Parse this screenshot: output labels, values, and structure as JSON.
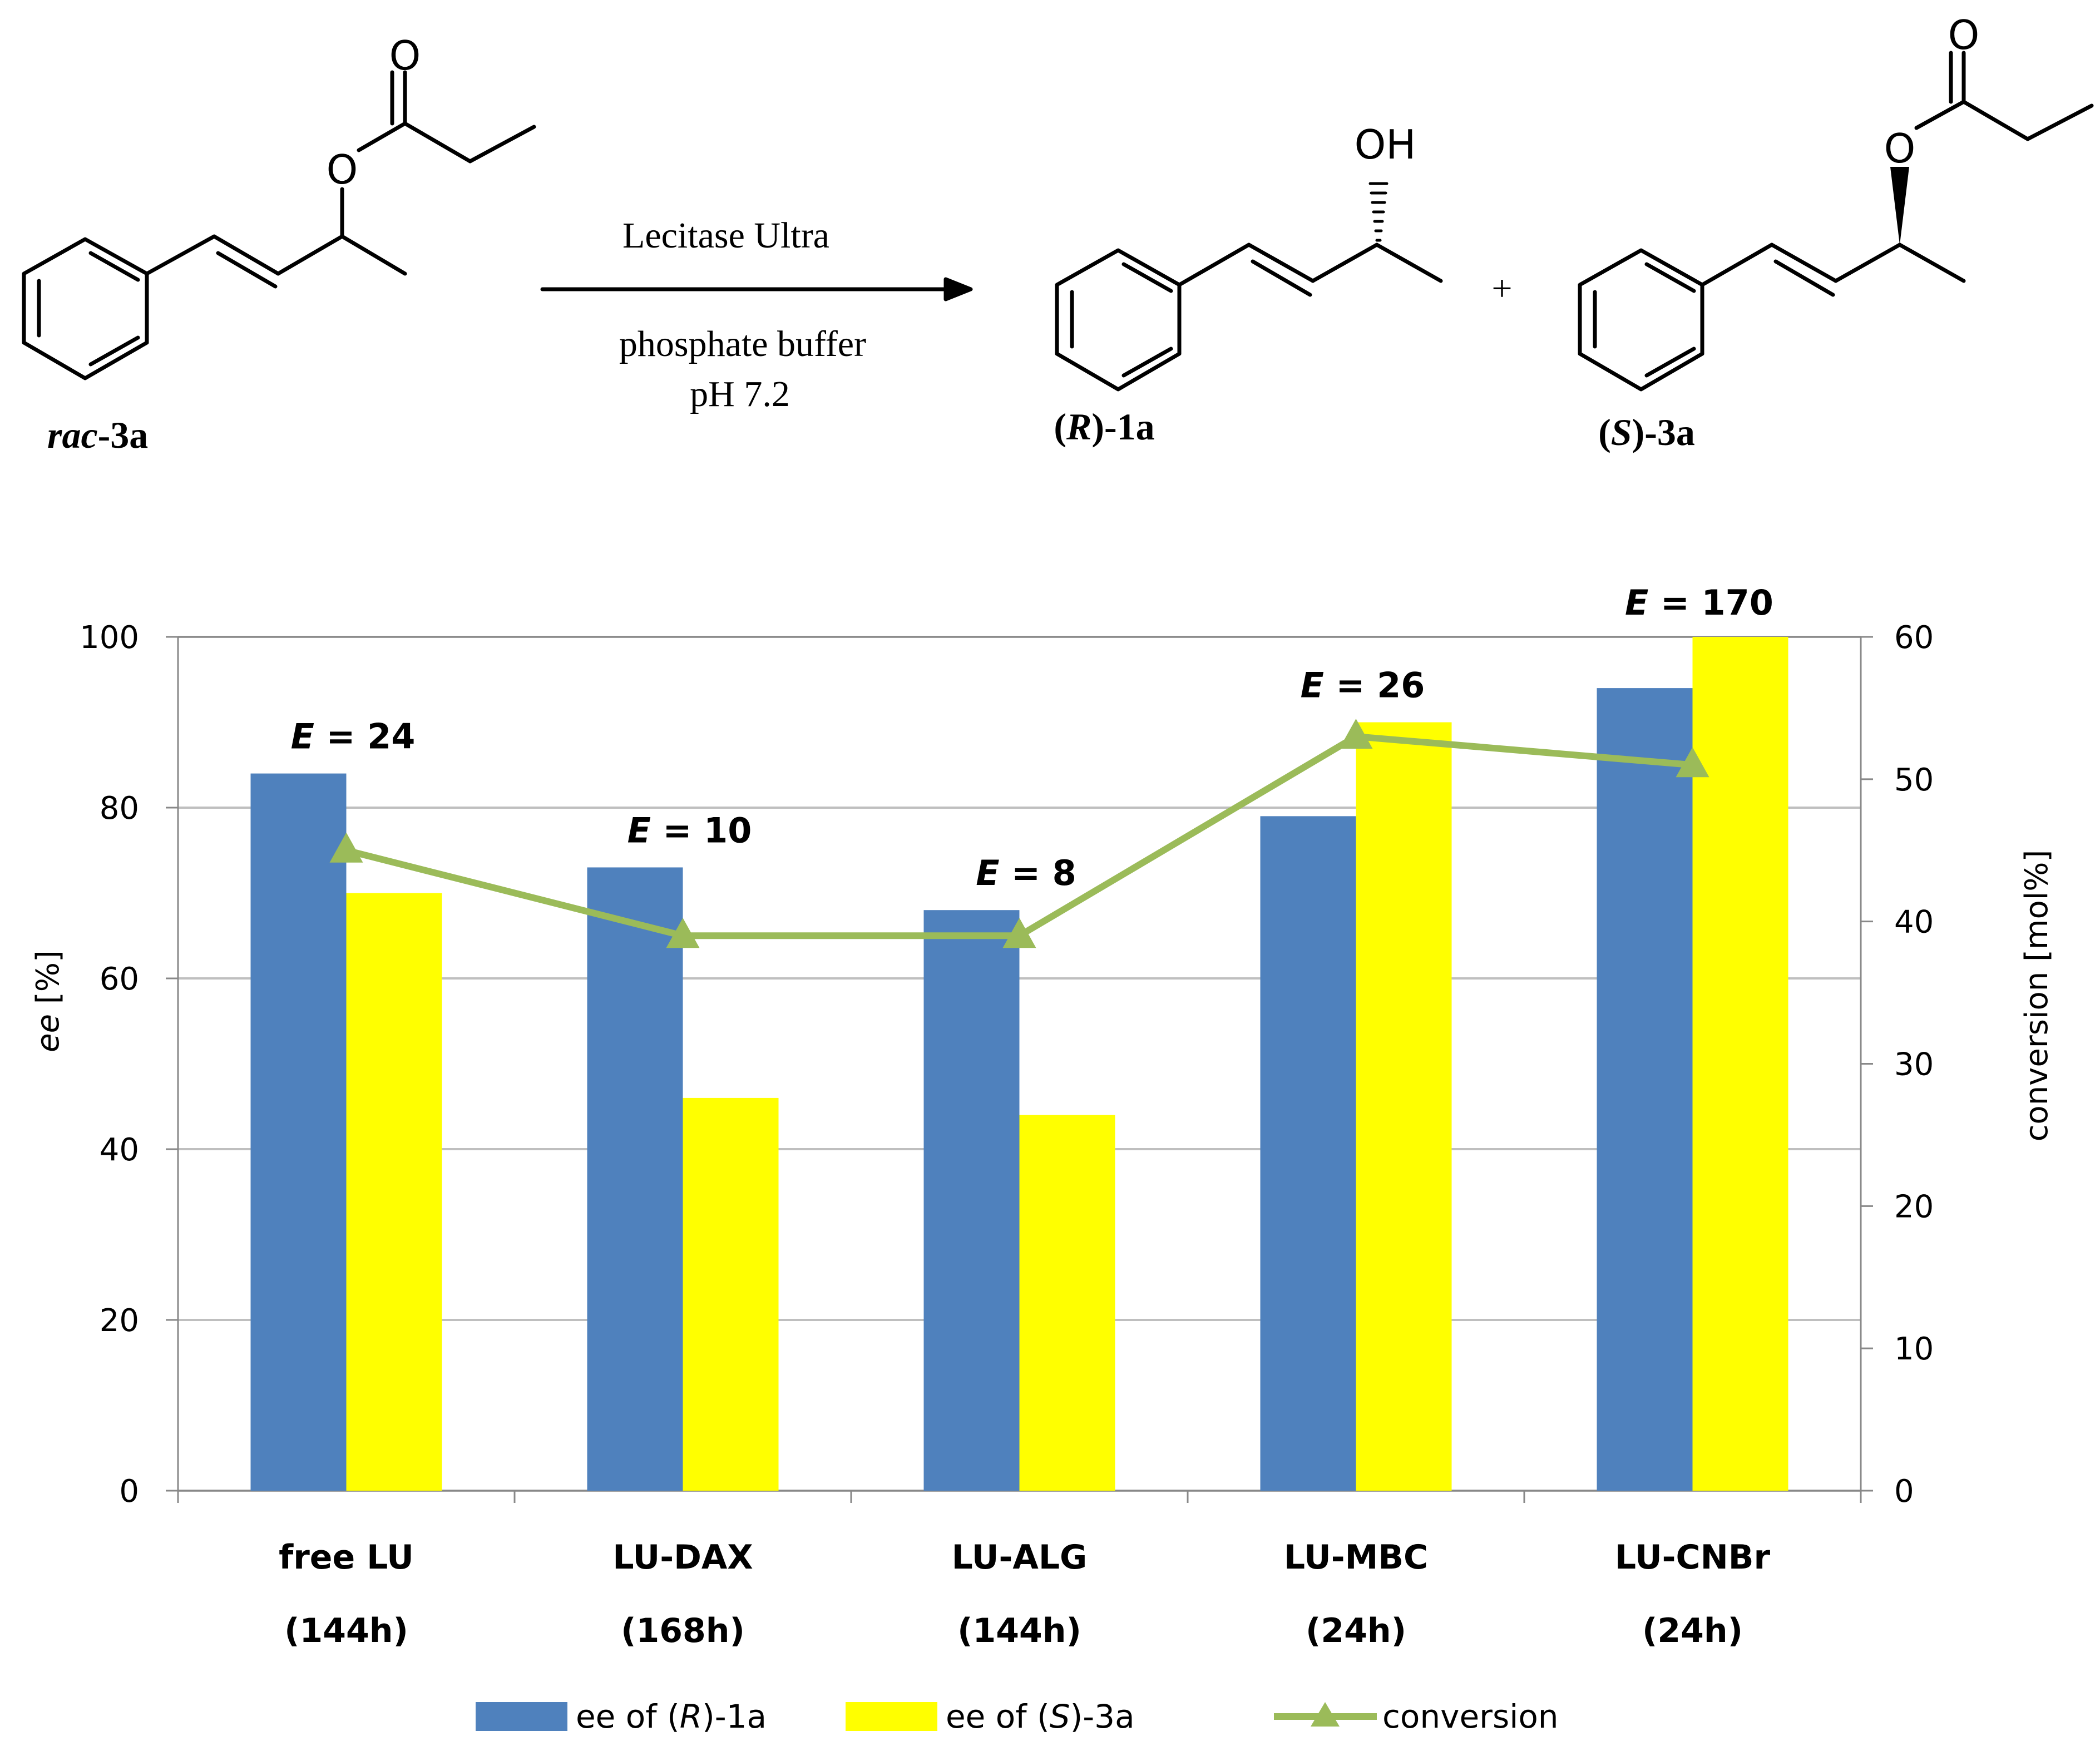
{
  "scheme": {
    "start_prefix": "rac",
    "start_suffix": "-3a",
    "reagent_top": "Lecitase Ultra",
    "reagent_bottom_1": "phosphate buffer",
    "reagent_bottom_2": "pH 7.2",
    "product1_prefix": "(",
    "product1_config": "R",
    "product1_suffix": ")-1a",
    "product2_prefix": "(",
    "product2_config": "S",
    "product2_suffix": ")-3a",
    "plus": "+",
    "atom_O": "O",
    "atom_OH": "OH"
  },
  "chart_data": {
    "type": "bar",
    "categories": [
      "free LU",
      "LU-DAX",
      "LU-ALG",
      "LU-MBC",
      "LU-CNBr"
    ],
    "category_times": [
      "(144h)",
      "(168h)",
      "(144h)",
      "(24h)",
      "(24h)"
    ],
    "series": [
      {
        "name": "ee of (R)-1a",
        "name_pre": "ee of (",
        "name_italic": "R",
        "name_post": ")-1a",
        "axis": "left",
        "type": "bar",
        "color": "#4f81bd",
        "values": [
          84,
          73,
          68,
          79,
          94
        ]
      },
      {
        "name": "ee of (S)-3a",
        "name_pre": "ee of (",
        "name_italic": "S",
        "name_post": ")-3a",
        "axis": "left",
        "type": "bar",
        "color": "#ffff00",
        "values": [
          70,
          46,
          44,
          90,
          100
        ]
      },
      {
        "name": "conversion",
        "axis": "right",
        "type": "line",
        "marker": "triangle",
        "color": "#9bbb59",
        "values": [
          45,
          39,
          39,
          53,
          51
        ]
      }
    ],
    "e_values": [
      "24",
      "10",
      "8",
      "26",
      "170"
    ],
    "e_symbol": "E",
    "e_equals": " = ",
    "ylabel_left_italic": "ee",
    "ylabel_left_rest": " [%]",
    "ylabel_right": "conversion [mol%]",
    "ylim_left": [
      0,
      100
    ],
    "ylim_right": [
      0,
      60
    ],
    "yticks_left": [
      "0",
      "20",
      "40",
      "60",
      "80",
      "100"
    ],
    "yticks_right": [
      "0",
      "10",
      "20",
      "30",
      "40",
      "50",
      "60"
    ],
    "grid": true,
    "legend_position": "bottom"
  }
}
